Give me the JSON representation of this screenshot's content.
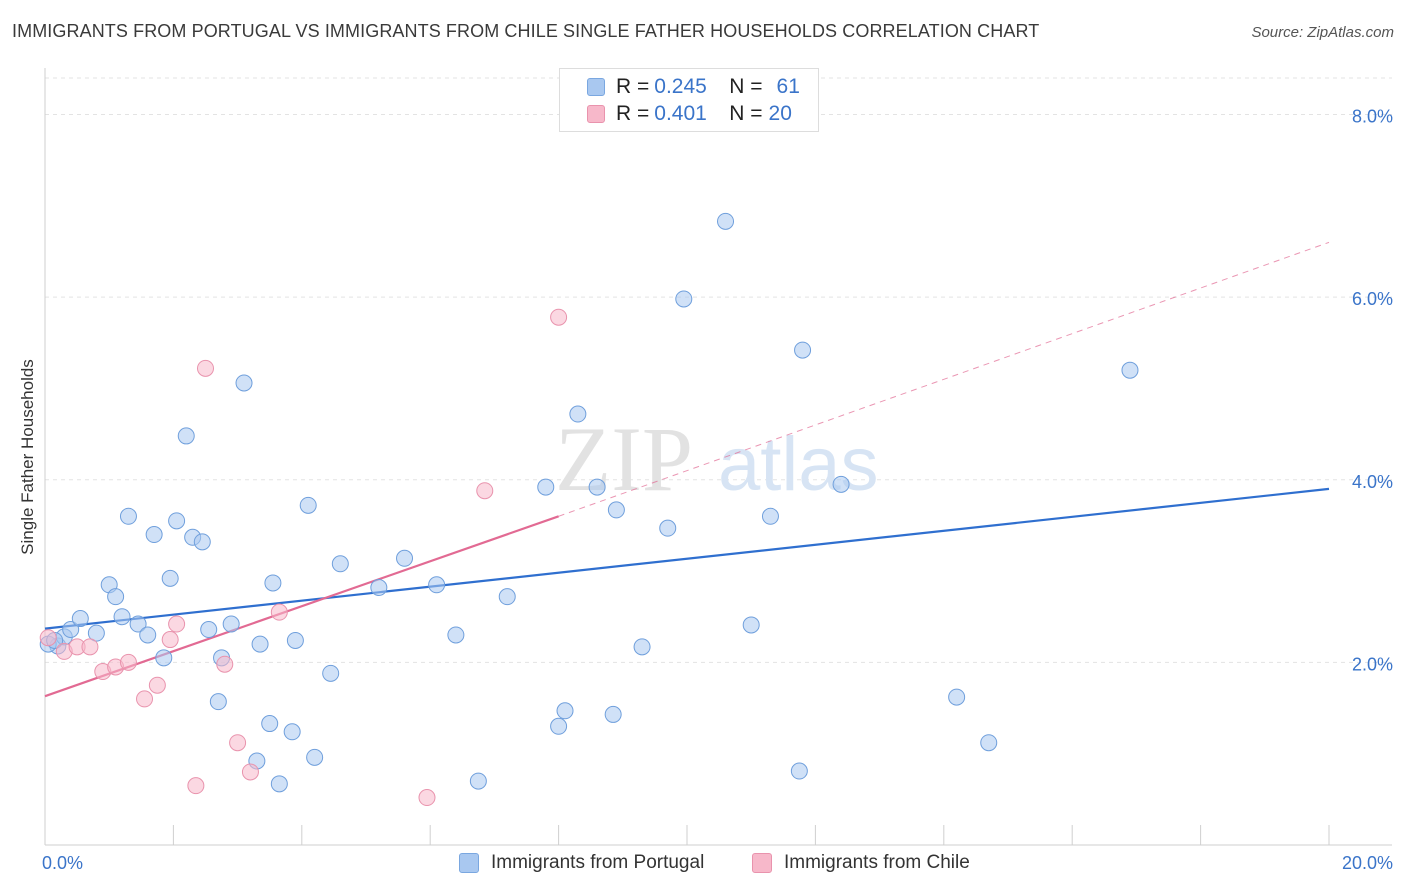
{
  "title": "IMMIGRANTS FROM PORTUGAL VS IMMIGRANTS FROM CHILE SINGLE FATHER HOUSEHOLDS CORRELATION CHART",
  "source": "Source: ZipAtlas.com",
  "watermark": {
    "zip": "ZIP",
    "atlas": "atlas"
  },
  "legend": {
    "rows": [
      {
        "r_label": "R =",
        "r_value": "0.245",
        "n_label": "N =",
        "n_value": "61",
        "color": "#a9c8f0",
        "border": "#7aa7e0"
      },
      {
        "r_label": "R =",
        "r_value": "0.401",
        "n_label": "N =",
        "n_value": "20",
        "color": "#f7b8ca",
        "border": "#e993ad"
      }
    ]
  },
  "bottom_legend": [
    {
      "label": "Immigrants from Portugal",
      "color": "#a9c8f0",
      "border": "#7aa7e0"
    },
    {
      "label": "Immigrants from Chile",
      "color": "#f7b8ca",
      "border": "#e993ad"
    }
  ],
  "chart_data": {
    "type": "scatter",
    "title": "IMMIGRANTS FROM PORTUGAL VS IMMIGRANTS FROM CHILE SINGLE FATHER HOUSEHOLDS CORRELATION CHART",
    "xlabel": "",
    "ylabel": "Single Father Households",
    "xlim": [
      0,
      20
    ],
    "ylim": [
      0,
      8.4
    ],
    "x_tick_labels": [
      {
        "value": 0,
        "label": "0.0%"
      },
      {
        "value": 20,
        "label": "20.0%"
      }
    ],
    "y_tick_labels": [
      {
        "value": 2,
        "label": "2.0%"
      },
      {
        "value": 4,
        "label": "4.0%"
      },
      {
        "value": 6,
        "label": "6.0%"
      },
      {
        "value": 8,
        "label": "8.0%"
      }
    ],
    "x_minor_ticks": [
      2,
      4,
      6,
      8,
      10,
      12,
      14,
      16,
      18,
      20
    ],
    "grid": true,
    "series": [
      {
        "name": "Immigrants from Portugal",
        "color": "#a9c8f0",
        "stroke": "#6f9fdc",
        "line_color": "#2f6fcf",
        "trend": {
          "x0": 0,
          "y0": 2.37,
          "x1": 20,
          "y1": 3.9
        },
        "points": [
          [
            0.2,
            2.18
          ],
          [
            0.3,
            2.28
          ],
          [
            0.4,
            2.36
          ],
          [
            0.55,
            2.48
          ],
          [
            0.8,
            2.32
          ],
          [
            1.0,
            2.85
          ],
          [
            1.1,
            2.72
          ],
          [
            1.2,
            2.5
          ],
          [
            1.3,
            3.6
          ],
          [
            1.45,
            2.42
          ],
          [
            1.6,
            2.3
          ],
          [
            1.7,
            3.4
          ],
          [
            1.85,
            2.05
          ],
          [
            1.95,
            2.92
          ],
          [
            2.05,
            3.55
          ],
          [
            2.2,
            4.48
          ],
          [
            2.3,
            3.37
          ],
          [
            2.45,
            3.32
          ],
          [
            2.55,
            2.36
          ],
          [
            2.7,
            1.57
          ],
          [
            2.75,
            2.05
          ],
          [
            2.9,
            2.42
          ],
          [
            3.1,
            5.06
          ],
          [
            3.3,
            0.92
          ],
          [
            3.35,
            2.2
          ],
          [
            3.5,
            1.33
          ],
          [
            3.55,
            2.87
          ],
          [
            3.65,
            0.67
          ],
          [
            3.85,
            1.24
          ],
          [
            3.9,
            2.24
          ],
          [
            4.1,
            3.72
          ],
          [
            4.2,
            0.96
          ],
          [
            4.45,
            1.88
          ],
          [
            4.6,
            3.08
          ],
          [
            5.2,
            2.82
          ],
          [
            5.6,
            3.14
          ],
          [
            6.1,
            2.85
          ],
          [
            6.4,
            2.3
          ],
          [
            6.75,
            0.7
          ],
          [
            7.2,
            2.72
          ],
          [
            7.8,
            3.92
          ],
          [
            8.0,
            1.3
          ],
          [
            8.1,
            1.47
          ],
          [
            8.3,
            4.72
          ],
          [
            8.6,
            3.92
          ],
          [
            8.85,
            1.43
          ],
          [
            8.9,
            3.67
          ],
          [
            9.3,
            2.17
          ],
          [
            9.7,
            3.47
          ],
          [
            9.95,
            5.98
          ],
          [
            10.6,
            6.83
          ],
          [
            11.0,
            2.41
          ],
          [
            11.3,
            3.6
          ],
          [
            11.75,
            0.81
          ],
          [
            11.8,
            5.42
          ],
          [
            12.4,
            3.95
          ],
          [
            14.2,
            1.62
          ],
          [
            14.7,
            1.12
          ],
          [
            16.9,
            5.2
          ],
          [
            0.05,
            2.2
          ],
          [
            0.15,
            2.24
          ]
        ]
      },
      {
        "name": "Immigrants from Chile",
        "color": "#f7b8ca",
        "stroke": "#e993ad",
        "line_color": "#e26a93",
        "trend": {
          "x0": 0,
          "y0": 1.63,
          "x1": 8.0,
          "y1": 3.6
        },
        "trend_ext": {
          "x0": 8.0,
          "y0": 3.6,
          "x1": 20,
          "y1": 6.6
        },
        "points": [
          [
            0.05,
            2.27
          ],
          [
            0.3,
            2.12
          ],
          [
            0.5,
            2.17
          ],
          [
            0.7,
            2.17
          ],
          [
            0.9,
            1.9
          ],
          [
            1.1,
            1.95
          ],
          [
            1.3,
            2.0
          ],
          [
            1.55,
            1.6
          ],
          [
            1.75,
            1.75
          ],
          [
            1.95,
            2.25
          ],
          [
            2.05,
            2.42
          ],
          [
            2.35,
            0.65
          ],
          [
            2.5,
            5.22
          ],
          [
            2.8,
            1.98
          ],
          [
            3.0,
            1.12
          ],
          [
            3.2,
            0.8
          ],
          [
            3.65,
            2.55
          ],
          [
            5.95,
            0.52
          ],
          [
            6.85,
            3.88
          ],
          [
            8.0,
            5.78
          ]
        ]
      }
    ]
  }
}
